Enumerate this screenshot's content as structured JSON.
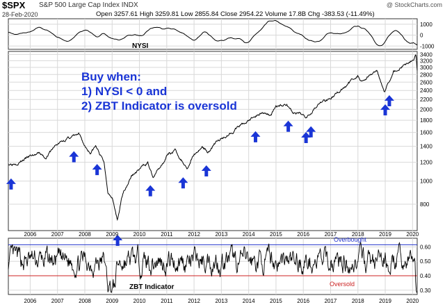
{
  "header": {
    "symbol": "$SPX",
    "company": "S&P 500 Large Cap Index  INDX",
    "date": "28-Feb-2020",
    "quote": "Open 3257.61  High 3259.81  Low 2855.84  Close 2954.22  Volume 17.8B  Chg -383.53 (-11.49%)",
    "watermark": "@ StockCharts.com"
  },
  "annotation": {
    "line1": "Buy when:",
    "line2": "1) NYSI < 0 and",
    "line3": "2) ZBT Indicator is oversold"
  },
  "panels": {
    "nysi_label": "NYSI",
    "zbt_label": "ZBT Indicator",
    "overbought": "Overbought",
    "oversold": "Oversold"
  },
  "colors": {
    "price_line": "#000000",
    "arrow": "#1a35d6",
    "overbought_line": "#2233cc",
    "oversold_line": "#cc2222",
    "grid": "#d8d8d8"
  },
  "chart_data": [
    {
      "type": "line",
      "name": "NYSI",
      "y_ticks": [
        1000,
        0,
        -1000
      ],
      "ylim": [
        -1300,
        1500
      ],
      "x_start": 2005.2,
      "x_end": 2020.17,
      "seed": 7
    },
    {
      "type": "line",
      "name": "$SPX",
      "log_scale": true,
      "ylim": [
        620,
        3500
      ],
      "y_ticks": [
        3400,
        3200,
        3000,
        2800,
        2600,
        2400,
        2200,
        2000,
        1800,
        1600,
        1400,
        1200,
        1000,
        800
      ],
      "x_ticks": [
        "2006",
        "2007",
        "2008",
        "2009",
        "2010",
        "2011",
        "2012",
        "2013",
        "2014",
        "2015",
        "2016",
        "2017",
        "2018",
        "2019",
        "2020"
      ],
      "x": [
        2005.2,
        2005.6,
        2006.0,
        2006.35,
        2006.55,
        2006.9,
        2007.3,
        2007.55,
        2007.78,
        2008.0,
        2008.2,
        2008.4,
        2008.7,
        2008.85,
        2009.0,
        2009.19,
        2009.4,
        2009.7,
        2010.0,
        2010.3,
        2010.5,
        2010.7,
        2011.0,
        2011.3,
        2011.6,
        2011.76,
        2012.0,
        2012.3,
        2012.5,
        2012.8,
        2013.0,
        2013.5,
        2014.0,
        2014.5,
        2014.8,
        2015.0,
        2015.4,
        2015.65,
        2016.1,
        2016.5,
        2016.9,
        2017.5,
        2018.0,
        2018.1,
        2018.7,
        2018.98,
        2019.3,
        2019.5,
        2020.0,
        2020.13,
        2020.17
      ],
      "values": [
        1180,
        1210,
        1270,
        1300,
        1250,
        1400,
        1500,
        1540,
        1560,
        1400,
        1320,
        1400,
        1200,
        900,
        870,
        680,
        900,
        1050,
        1120,
        1200,
        1030,
        1120,
        1280,
        1340,
        1200,
        1140,
        1300,
        1400,
        1330,
        1450,
        1500,
        1650,
        1800,
        1950,
        1900,
        2050,
        2110,
        1930,
        1860,
        2100,
        2200,
        2450,
        2800,
        2620,
        2900,
        2400,
        2900,
        2950,
        3250,
        3380,
        2954
      ],
      "buy_signals": [
        2005.3,
        2007.6,
        2008.45,
        2009.2,
        2010.4,
        2011.6,
        2012.45,
        2014.25,
        2015.45,
        2016.1,
        2016.28,
        2019.0,
        2019.15
      ]
    },
    {
      "type": "line",
      "name": "ZBT Indicator",
      "y_ticks": [
        0.6,
        0.5,
        0.4,
        0.3
      ],
      "ylim": [
        0.27,
        0.66
      ],
      "overbought": 0.615,
      "oversold": 0.4,
      "x_ticks": [
        "2006",
        "2007",
        "2008",
        "2009",
        "2010",
        "2011",
        "2012",
        "2013",
        "2014",
        "2015",
        "2016",
        "2017",
        "2018",
        "2019",
        "2020"
      ],
      "seed": 13
    }
  ]
}
